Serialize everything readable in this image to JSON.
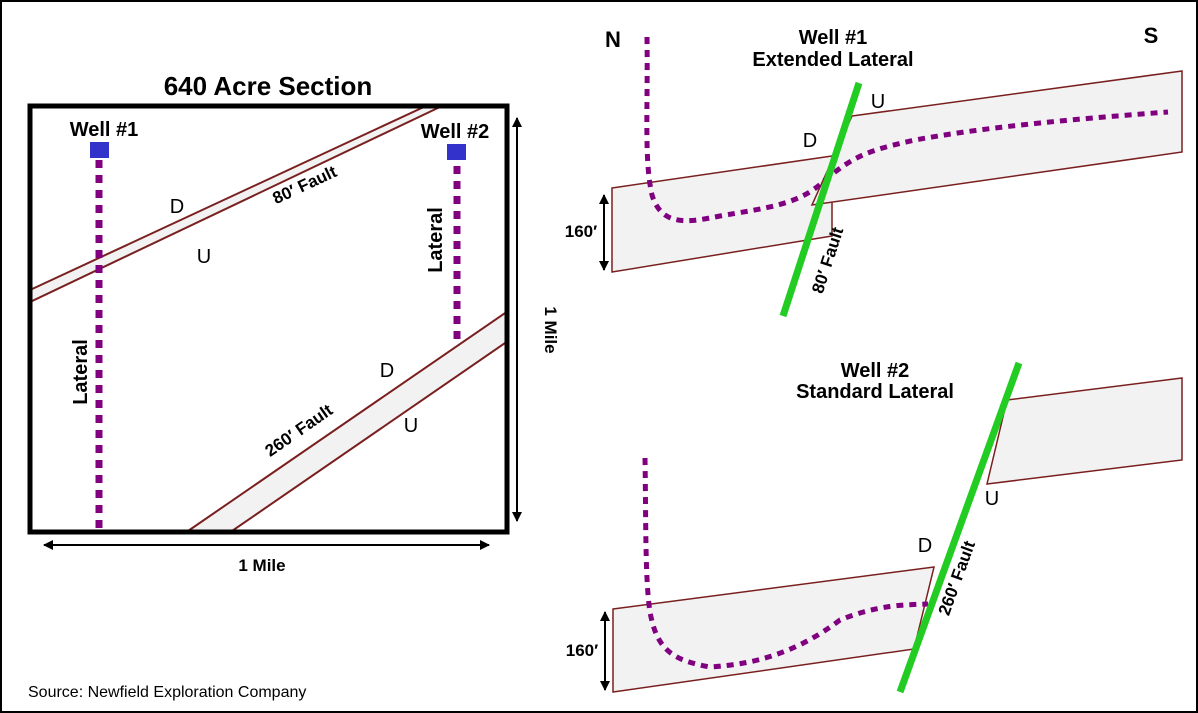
{
  "map": {
    "title": "640 Acre Section",
    "well1_label": "Well #1",
    "well2_label": "Well #2",
    "lateral1_label": "Lateral",
    "lateral2_label": "Lateral",
    "fault80_label": "80′ Fault",
    "fault260_label": "260′ Fault",
    "fault80_down": "D",
    "fault80_up": "U",
    "fault260_down": "D",
    "fault260_up": "U",
    "width_label": "1 Mile",
    "height_label": "1 Mile"
  },
  "section1": {
    "north_label": "N",
    "south_label": "S",
    "title_line1": "Well #1",
    "title_line2": "Extended Lateral",
    "thickness_label": "160′",
    "fault_label": "80′ Fault",
    "up_label": "U",
    "down_label": "D"
  },
  "section2": {
    "title_line1": "Well #2",
    "title_line2": "Standard Lateral",
    "thickness_label": "160′",
    "fault_label": "260′ Fault",
    "up_label": "U",
    "down_label": "D"
  },
  "source": "Source: Newfield Exploration Company",
  "colors": {
    "well_marker": "#3333cc",
    "lateral": "#800080",
    "fault_line": "#22cc22",
    "bed_outline": "#7a1f1f",
    "bed_fill": "#f2f2f2"
  }
}
